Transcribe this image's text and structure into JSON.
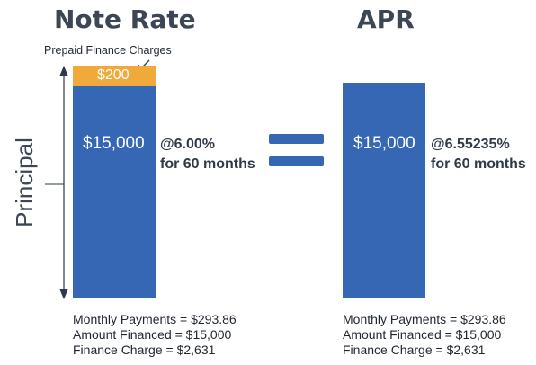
{
  "colors": {
    "principal_bar": "#3567b5",
    "finance_charges_bar": "#f2a93b",
    "heading": "#3d4655"
  },
  "note_rate": {
    "heading": "Note Rate",
    "prepaid_label": "Prepaid Finance Charges",
    "prepaid_amount": "$200",
    "principal_amount": "$15,000",
    "rate": "@6.00%",
    "term": "for 60 months",
    "summary": [
      "Monthly Payments = $293.86",
      "Amount Financed = $15,000",
      "Finance Charge = $2,631"
    ]
  },
  "apr": {
    "heading": "APR",
    "principal_amount": "$15,000",
    "rate": "@6.55235%",
    "term": "for 60 months",
    "summary": [
      "Monthly Payments = $293.86",
      "Amount Financed = $15,000",
      "Finance Charge = $2,631"
    ]
  },
  "axis_label": "Principal",
  "equals_icon": "equals-icon"
}
